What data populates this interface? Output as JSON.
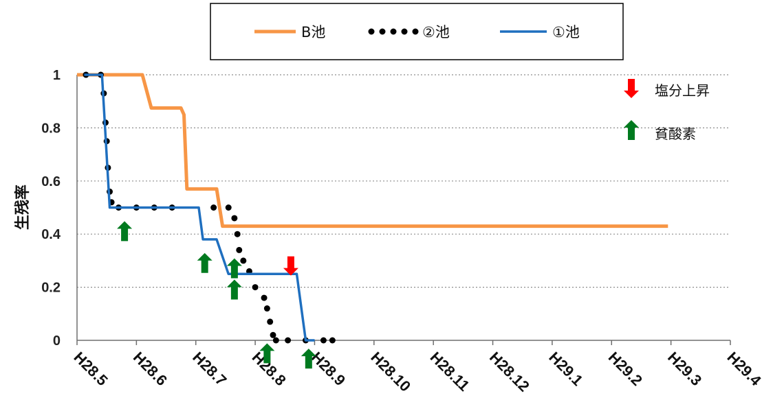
{
  "chart_data": {
    "type": "line",
    "x_type": "month",
    "categories": [
      "H28.5",
      "H28.6",
      "H28.7",
      "H28.8",
      "H28.9",
      "H28.10",
      "H28.11",
      "H28.12",
      "H29.1",
      "H29.2",
      "H29.3",
      "H29.4"
    ],
    "ylabel": "生残率",
    "ylim": [
      0,
      1
    ],
    "yticks": [
      0,
      0.2,
      0.4,
      0.6,
      0.8,
      1
    ],
    "ytick_labels": [
      "0",
      "0.2",
      "0.4",
      "0.6",
      "0.8",
      "1"
    ],
    "grid": true,
    "legend_position": "top",
    "series": [
      {
        "name": "B池",
        "color": "#F79646",
        "style": "solid",
        "points": [
          [
            0,
            1
          ],
          [
            1.1,
            1
          ],
          [
            1.25,
            0.875
          ],
          [
            1.75,
            0.875
          ],
          [
            1.8,
            0.85
          ],
          [
            1.85,
            0.57
          ],
          [
            2.35,
            0.57
          ],
          [
            2.45,
            0.43
          ],
          [
            9.95,
            0.43
          ]
        ]
      },
      {
        "name": "②池",
        "color": "#000000",
        "style": "dotted",
        "points": [
          [
            0.15,
            1
          ],
          [
            0.4,
            1
          ],
          [
            0.45,
            0.93
          ],
          [
            0.48,
            0.82
          ],
          [
            0.5,
            0.75
          ],
          [
            0.52,
            0.65
          ],
          [
            0.55,
            0.56
          ],
          [
            0.58,
            0.52
          ],
          [
            0.7,
            0.5
          ],
          [
            1.0,
            0.5
          ],
          [
            1.3,
            0.5
          ],
          [
            1.6,
            0.5
          ],
          [
            2.3,
            0.5
          ],
          [
            2.55,
            0.5
          ],
          [
            2.65,
            0.46
          ],
          [
            2.7,
            0.4
          ],
          [
            2.73,
            0.34
          ],
          [
            2.8,
            0.3
          ],
          [
            2.9,
            0.26
          ],
          [
            3.0,
            0.2
          ],
          [
            3.15,
            0.16
          ],
          [
            3.2,
            0.12
          ],
          [
            3.25,
            0.07
          ],
          [
            3.3,
            0.02
          ],
          [
            3.35,
            0
          ],
          [
            3.55,
            0
          ],
          [
            3.85,
            0
          ],
          [
            4.15,
            0
          ],
          [
            4.3,
            0
          ]
        ]
      },
      {
        "name": "①池",
        "color": "#1F6FBF",
        "style": "solid",
        "points": [
          [
            0.12,
            1
          ],
          [
            0.42,
            1
          ],
          [
            0.55,
            0.5
          ],
          [
            2.05,
            0.5
          ],
          [
            2.12,
            0.38
          ],
          [
            2.35,
            0.38
          ],
          [
            2.55,
            0.25
          ],
          [
            3.7,
            0.25
          ],
          [
            3.85,
            0
          ],
          [
            4.0,
            0
          ]
        ]
      }
    ],
    "annotations": {
      "legend": [
        {
          "label": "塩分上昇",
          "marker": "down-arrow",
          "color": "#FF0000"
        },
        {
          "label": "貧酸素",
          "marker": "up-arrow",
          "color": "#007A1F"
        }
      ],
      "down_arrows": [
        {
          "x": 3.6,
          "y": 0.28
        }
      ],
      "up_arrows": [
        {
          "x": 0.8,
          "y": 0.41
        },
        {
          "x": 2.15,
          "y": 0.29
        },
        {
          "x": 2.65,
          "y": 0.27
        },
        {
          "x": 2.65,
          "y": 0.19
        },
        {
          "x": 3.2,
          "y": -0.05
        },
        {
          "x": 3.9,
          "y": -0.07
        }
      ]
    }
  }
}
